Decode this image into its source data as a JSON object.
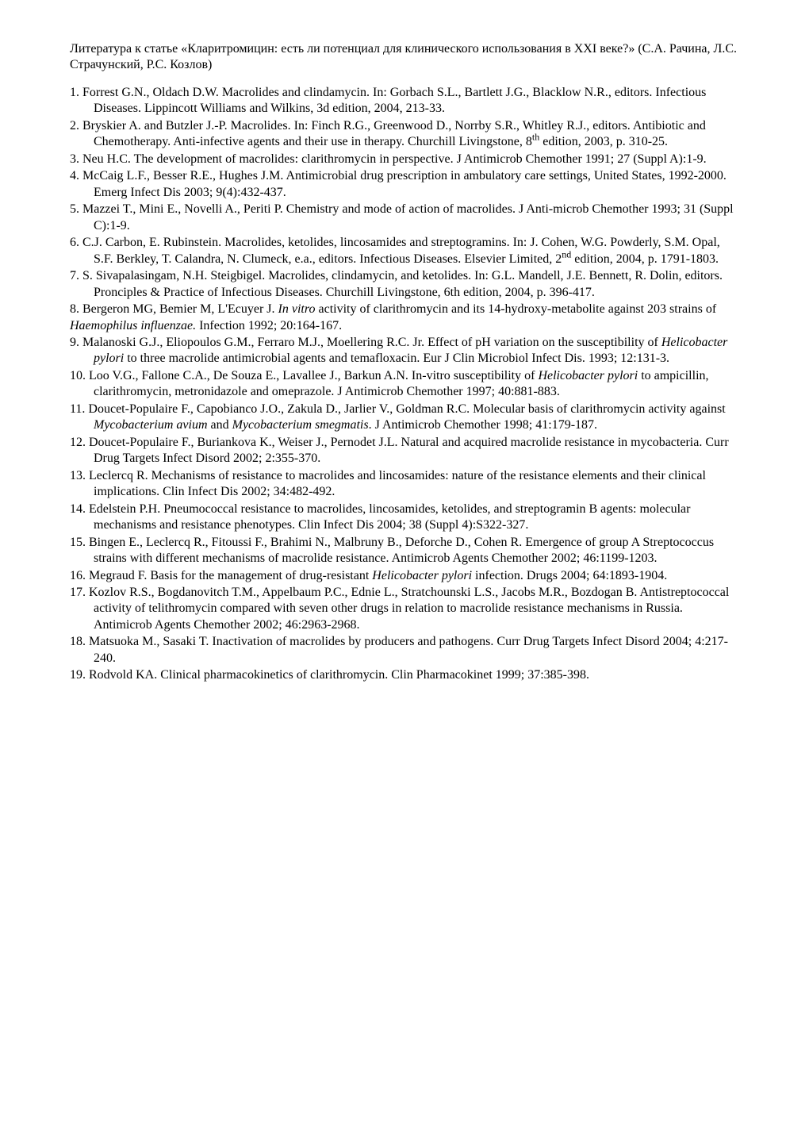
{
  "intro": "Литература к статье «Кларитромицин: есть ли потенциал для клинического использования в XXI веке?» (С.А. Рачина, Л.С. Страчунский, Р.С. Козлов)",
  "refs": [
    {
      "n": "1.",
      "segs": [
        {
          "t": "Forrest G.N., Oldach D.W. Macrolides and clindamycin. In: Gorbach S.L., Bartlett J.G., Blacklow N.R., editors. Infectious Diseases. Lippincott Williams and Wilkins, 3d edition, 2004, 213-33."
        }
      ]
    },
    {
      "n": "2.",
      "segs": [
        {
          "t": "Bryskier A. and Butzler J.-P. Macrolides. In: Finch R.G., Greenwood D., Norrby S.R., Whitley R.J., editors. Antibiotic and Chemotherapy. Anti-infective agents and their use in therapy. Churchill Livingstone, 8"
        },
        {
          "t": "th",
          "sup": true
        },
        {
          "t": " edition, 2003, p. 310-25."
        }
      ]
    },
    {
      "n": "3.",
      "segs": [
        {
          "t": "Neu H.C. The development of macrolides: clarithromycin in perspective. J Antimicrob Chemother 1991; 27 (Suppl A):1-9."
        }
      ]
    },
    {
      "n": "4.",
      "segs": [
        {
          "t": "McCaig L.F., Besser R.E., Hughes J.M. Antimicrobial drug prescription in ambulatory care settings, United States, 1992-2000. Emerg Infect Dis 2003; 9(4):432-437."
        }
      ]
    },
    {
      "n": "5.",
      "segs": [
        {
          "t": "Mazzei T., Mini E., Novelli A., Periti P. Chemistry and mode of action of macrolides. J Anti-microb Chemother 1993; 31 (Suppl C):1-9."
        }
      ]
    },
    {
      "n": "6.",
      "segs": [
        {
          "t": "C.J. Carbon, E. Rubinstein. Macrolides, ketolides, lincosamides and streptogramins. In: J. Cohen, W.G. Powderly, S.M. Opal, S.F. Berkley, T. Calandra, N. Clumeck, e.a., editors. Infectious Diseases. Elsevier Limited, 2"
        },
        {
          "t": "nd",
          "sup": true
        },
        {
          "t": " edition, 2004, p. 1791-1803."
        }
      ]
    },
    {
      "n": "7.",
      "segs": [
        {
          "t": "S. Sivapalasingam, N.H. Steigbigel. Macrolides, clindamycin, and ketolides. In: G.L. Mandell, J.E. Bennett, R. Dolin, editors. Pronciples & Practice of Infectious Diseases. Churchill Livingstone, 6th edition, 2004, p. 396-417."
        }
      ]
    },
    {
      "n": "8.",
      "noindent": true,
      "segs": [
        {
          "t": "Bergeron MG, Bemier M, L'Ecuyer J. "
        },
        {
          "t": "In vitro",
          "i": true
        },
        {
          "t": " activity of clarithromycin and its 14-hydroxy-metabolite against 203 strains of "
        },
        {
          "t": "Haemophilus influenzae.",
          "i": true
        },
        {
          "t": " Infection 1992; 20:164-167."
        }
      ]
    },
    {
      "n": "9.",
      "segs": [
        {
          "t": "Malanoski G.J., Eliopoulos G.M., Ferraro M.J., Moellering R.C. Jr. Effect of pH variation on the susceptibility of "
        },
        {
          "t": "Helicobacter pylori",
          "i": true
        },
        {
          "t": " to three macrolide antimicrobial agents and temafloxacin. Eur J Clin Microbiol Infect Dis. 1993; 12:131-3."
        }
      ]
    },
    {
      "n": "10.",
      "segs": [
        {
          "t": "Loo V.G., Fallone C.A., De Souza E., Lavallee J., Barkun A.N. In-vitro susceptibility of "
        },
        {
          "t": "Helicobacter pylori",
          "i": true
        },
        {
          "t": " to ampicillin, clarithromycin, metronidazole and omeprazole. J Antimicrob Chemother 1997; 40:881-883."
        }
      ]
    },
    {
      "n": "11.",
      "segs": [
        {
          "t": "Doucet-Populaire F., Capobianco J.O., Zakula D., Jarlier V., Goldman R.C. Molecular basis of clarithromycin activity against "
        },
        {
          "t": "Mycobacterium avium",
          "i": true
        },
        {
          "t": " and "
        },
        {
          "t": "Mycobacterium smegmatis",
          "i": true
        },
        {
          "t": ". J Antimicrob Chemother 1998; 41:179-187."
        }
      ]
    },
    {
      "n": "12.",
      "segs": [
        {
          "t": "Doucet-Populaire F., Buriankova K., Weiser J., Pernodet J.L. Natural and acquired macrolide resistance in mycobacteria. Curr Drug Targets Infect Disord 2002; 2:355-370."
        }
      ]
    },
    {
      "n": "13.",
      "segs": [
        {
          "t": "Leclercq R. Mechanisms of resistance to macrolides and lincosamides: nature of the resistance elements and their clinical implications. Clin Infect Dis 2002; 34:482-492."
        }
      ]
    },
    {
      "n": "14.",
      "segs": [
        {
          "t": "Edelstein P.H. Pneumococcal resistance to macrolides, lincosamides, ketolides, and streptogramin B agents: molecular mechanisms and resistance phenotypes. Clin Infect Dis 2004; 38 (Suppl 4):S322-327."
        }
      ]
    },
    {
      "n": "15.",
      "segs": [
        {
          "t": "Bingen E., Leclercq R., Fitoussi F., Brahimi N., Malbruny B., Deforche D., Cohen R. Emergence of group A Streptococcus strains with different mechanisms of macrolide resistance. Antimicrob Agents Chemother 2002; 46:1199-1203."
        }
      ]
    },
    {
      "n": "16.",
      "segs": [
        {
          "t": "Megraud F. Basis for the management of drug-resistant "
        },
        {
          "t": "Helicobacter pylori",
          "i": true
        },
        {
          "t": " infection. Drugs 2004; 64:1893-1904."
        }
      ]
    },
    {
      "n": "17.",
      "segs": [
        {
          "t": "Kozlov R.S., Bogdanovitch T.M., Appelbaum P.C., Ednie L., Stratchounski L.S., Jacobs M.R., Bozdogan B. Antistreptococcal activity of telithromycin compared with seven other drugs in relation to macrolide resistance mechanisms in Russia. Antimicrob Agents Chemother 2002; 46:2963-2968."
        }
      ]
    },
    {
      "n": "18.",
      "segs": [
        {
          "t": "Matsuoka M., Sasaki T. Inactivation of macrolides by producers and pathogens. Curr Drug Targets Infect Disord 2004; 4:217-240."
        }
      ]
    },
    {
      "n": "19.",
      "segs": [
        {
          "t": "Rodvold KA. Clinical pharmacokinetics of clarithromycin. Clin Pharmacokinet 1999; 37:385-398."
        }
      ]
    }
  ]
}
